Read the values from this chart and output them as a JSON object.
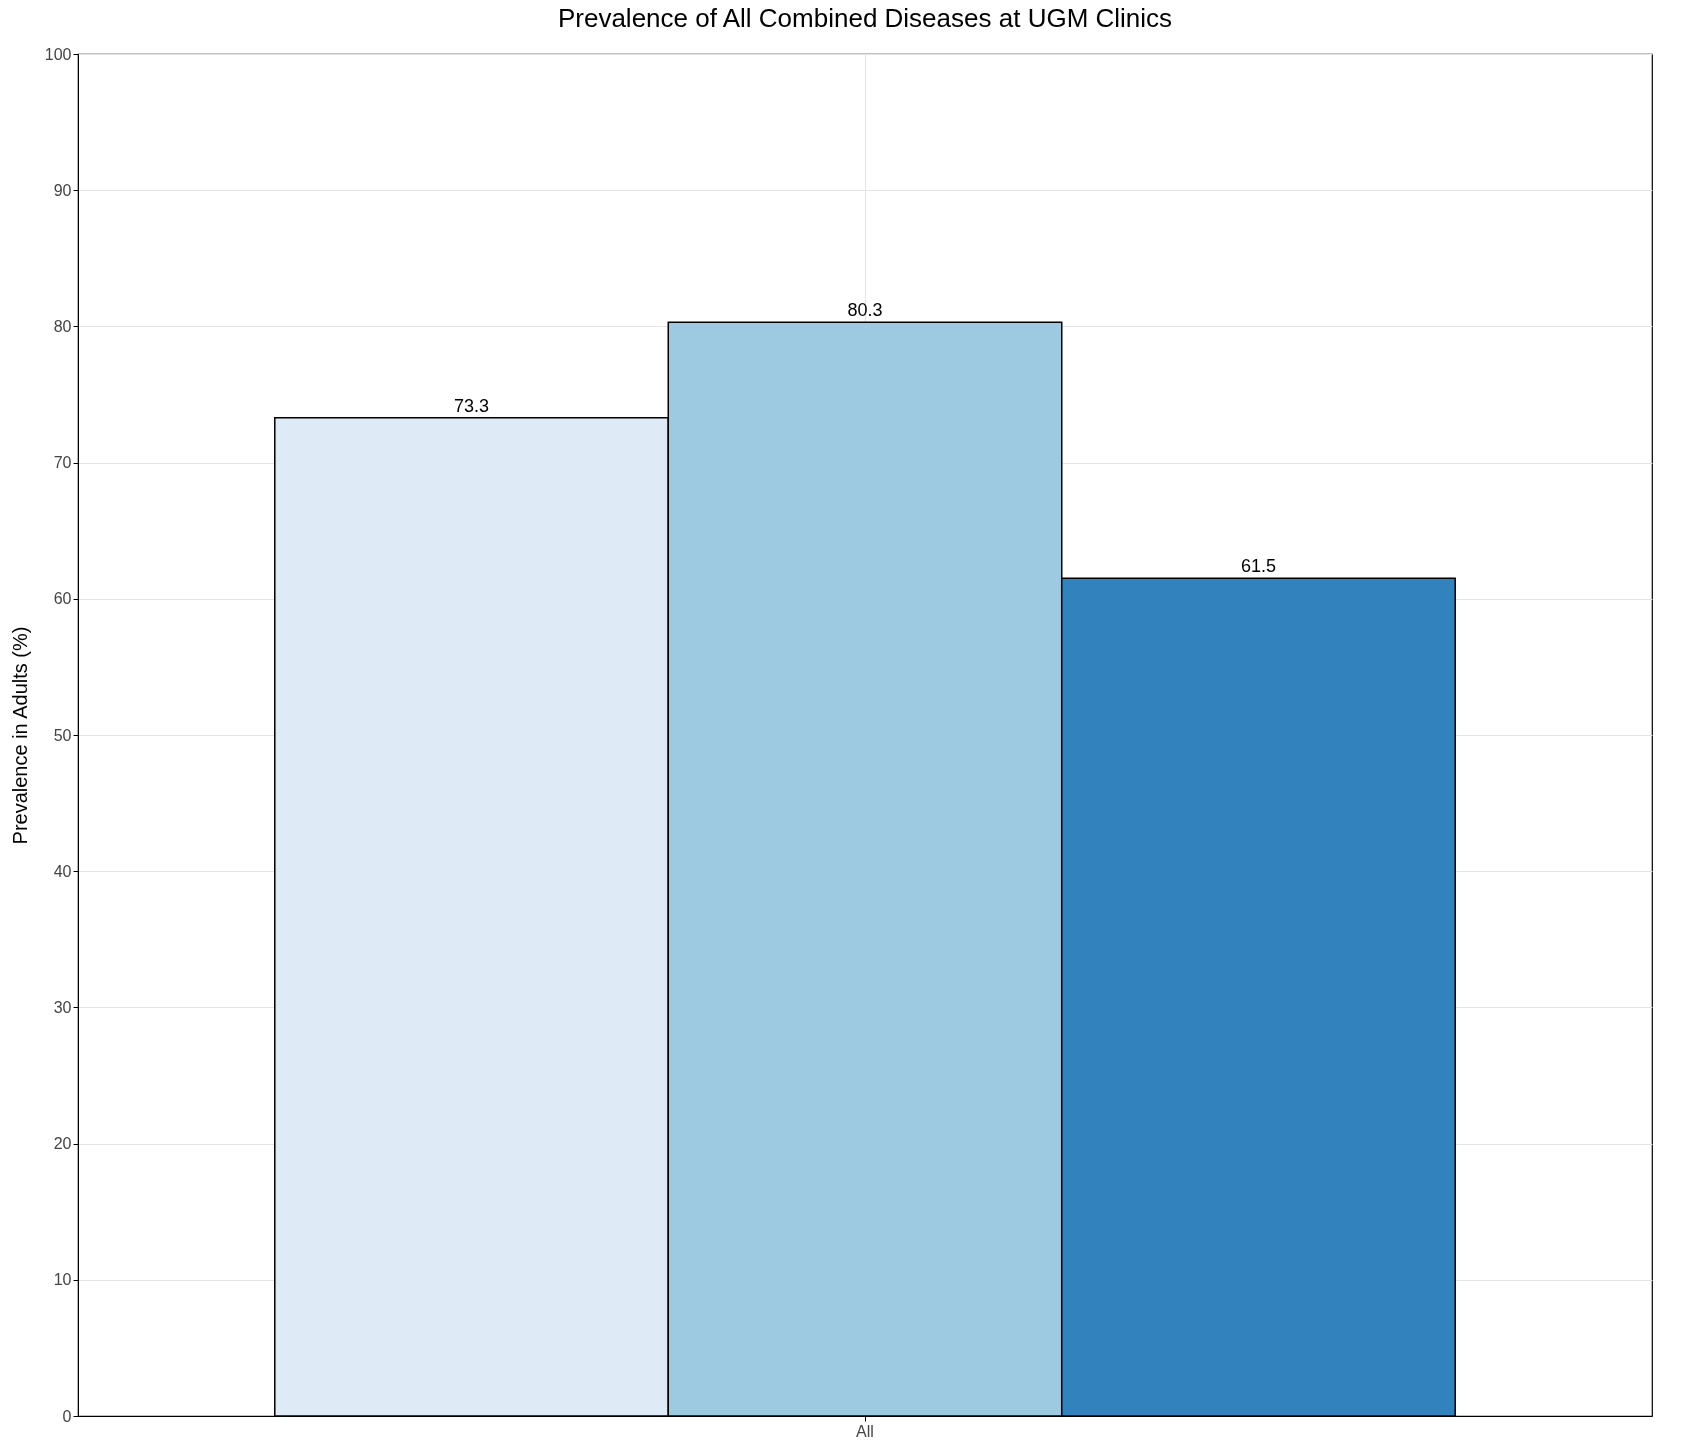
{
  "chart_data": {
    "type": "bar",
    "title": "Prevalence of All Combined Diseases at UGM Clinics",
    "ylabel": "Prevalence in Adults (%)",
    "categories": [
      "All"
    ],
    "series": [
      {
        "color": "#deebf7",
        "values": [
          73.3
        ]
      },
      {
        "color": "#9ecae1",
        "values": [
          80.3
        ]
      },
      {
        "color": "#3182bd",
        "values": [
          61.5
        ]
      }
    ],
    "ylim": [
      0,
      100
    ],
    "yticks": [
      0,
      10,
      20,
      30,
      40,
      50,
      60,
      70,
      80,
      90,
      100
    ],
    "grid": true,
    "data_labels": true,
    "legend": false
  }
}
